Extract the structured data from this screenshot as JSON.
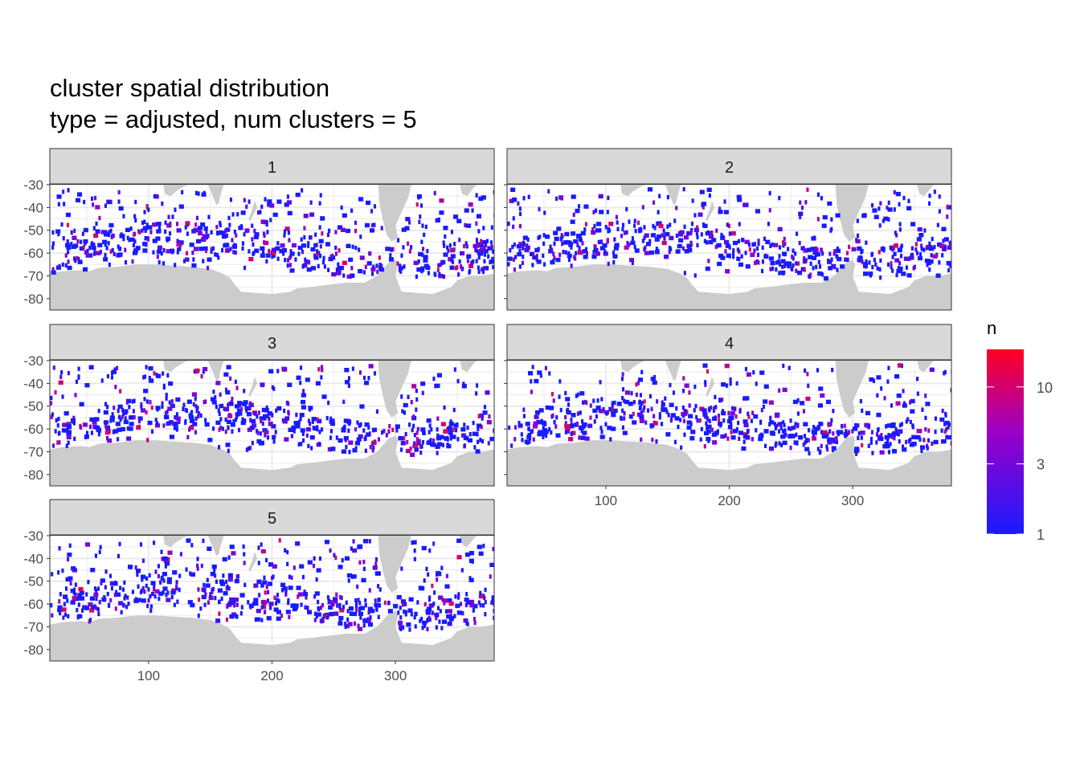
{
  "title_line1": "cluster spatial distribution",
  "title_line2": "type = adjusted, num clusters = 5",
  "chart_data": {
    "type": "heatmap",
    "facets": [
      "1",
      "2",
      "3",
      "4",
      "5"
    ],
    "x_ticks": [
      100,
      200,
      300
    ],
    "x_ticklabels": [
      "100",
      "200",
      "300"
    ],
    "y_ticks": [
      -30,
      -40,
      -50,
      -60,
      -70,
      -80
    ],
    "y_ticklabels": [
      "-30",
      "-40",
      "-50",
      "-60",
      "-70",
      "-80"
    ],
    "xlim": [
      20,
      380
    ],
    "ylim": [
      -85,
      -30
    ],
    "grid": true,
    "legend": {
      "title": "n",
      "placement": "right",
      "tick_values": [
        1,
        3,
        10
      ],
      "tick_labels": [
        "1",
        "3",
        "10"
      ],
      "range": [
        1,
        18
      ],
      "scale": "log",
      "color_low": "#1a1aff",
      "color_mid": "#9a00c8",
      "color_high": "#ff0022"
    },
    "colors": {
      "land": "#cccccc",
      "strip": "#d9d9d9",
      "panel": "#ffffff",
      "grid": "#ebebeb"
    }
  }
}
